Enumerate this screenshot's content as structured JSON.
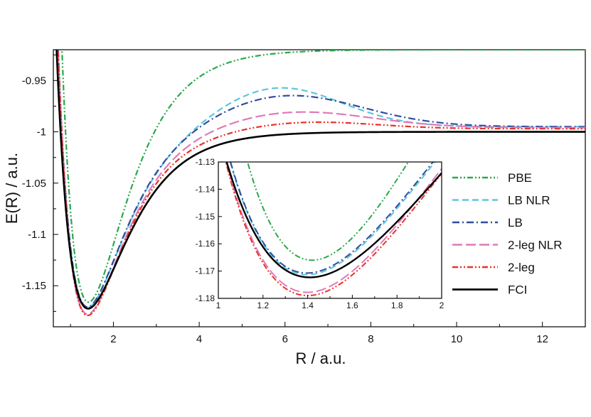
{
  "chart_data": {
    "type": "line",
    "xlabel": "R / a.u.",
    "ylabel": "E(R) / a.u.",
    "xlim": [
      0.6,
      13
    ],
    "ylim": [
      -1.19,
      -0.92
    ],
    "xticks": [
      2,
      4,
      6,
      8,
      10,
      12
    ],
    "xtick_labels": [
      "2",
      "4",
      "6",
      "8",
      "10",
      "12"
    ],
    "yticks": [
      -0.95,
      -1.0,
      -1.05,
      -1.1,
      -1.15
    ],
    "ytick_labels": [
      "-0.95",
      "-1",
      "-1.05",
      "-1.1",
      "-1.15"
    ],
    "legend": {
      "position": "right"
    },
    "series": [
      {
        "name": "PBE",
        "color": "#2aa84a",
        "dash": "dashdotdot",
        "De": 0.246,
        "a": 1.12,
        "Einf": -0.92,
        "Re": 1.42
      },
      {
        "name": "LB NLR",
        "color": "#5ec6dc",
        "dash": "dash",
        "De": 0.1768,
        "a": 1.14,
        "Einf": -0.995,
        "Re": 1.4,
        "hump": {
          "amp": 0.04,
          "center": 5.8,
          "width": 2.1
        }
      },
      {
        "name": "LB",
        "color": "#2f4ea0",
        "dash": "dashdot",
        "De": 0.1768,
        "a": 1.14,
        "Einf": -0.995,
        "Re": 1.4,
        "hump": {
          "amp": 0.032,
          "center": 6.0,
          "width": 2.5
        }
      },
      {
        "name": "2-leg NLR",
        "color": "#e07ab8",
        "dash": "longdash",
        "De": 0.1822,
        "a": 1.14,
        "Einf": -0.996,
        "Re": 1.4,
        "hump": {
          "amp": 0.0166,
          "center": 6.2,
          "width": 2.5
        }
      },
      {
        "name": "2-leg",
        "color": "#e8322a",
        "dash": "dashdotdot",
        "De": 0.182,
        "a": 1.14,
        "Einf": -0.997,
        "Re": 1.4,
        "hump": {
          "amp": 0.0073,
          "center": 6.5,
          "width": 2.2
        }
      },
      {
        "name": "FCI",
        "color": "#000000",
        "dash": "solid",
        "De": 0.1723,
        "a": 1.08,
        "Einf": -1.0,
        "Re": 1.41
      }
    ],
    "inset": {
      "xlim": [
        1,
        2
      ],
      "ylim": [
        -1.18,
        -1.13
      ],
      "xticks": [
        1,
        1.2,
        1.4,
        1.6,
        1.8,
        2
      ],
      "xtick_labels": [
        "1",
        "1.2",
        "1.4",
        "1.6",
        "1.8",
        "2"
      ],
      "yticks": [
        -1.13,
        -1.14,
        -1.15,
        -1.16,
        -1.17,
        -1.18
      ],
      "ytick_labels": [
        "-1.13",
        "-1.14",
        "-1.15",
        "-1.16",
        "-1.17",
        "-1.18"
      ]
    }
  }
}
